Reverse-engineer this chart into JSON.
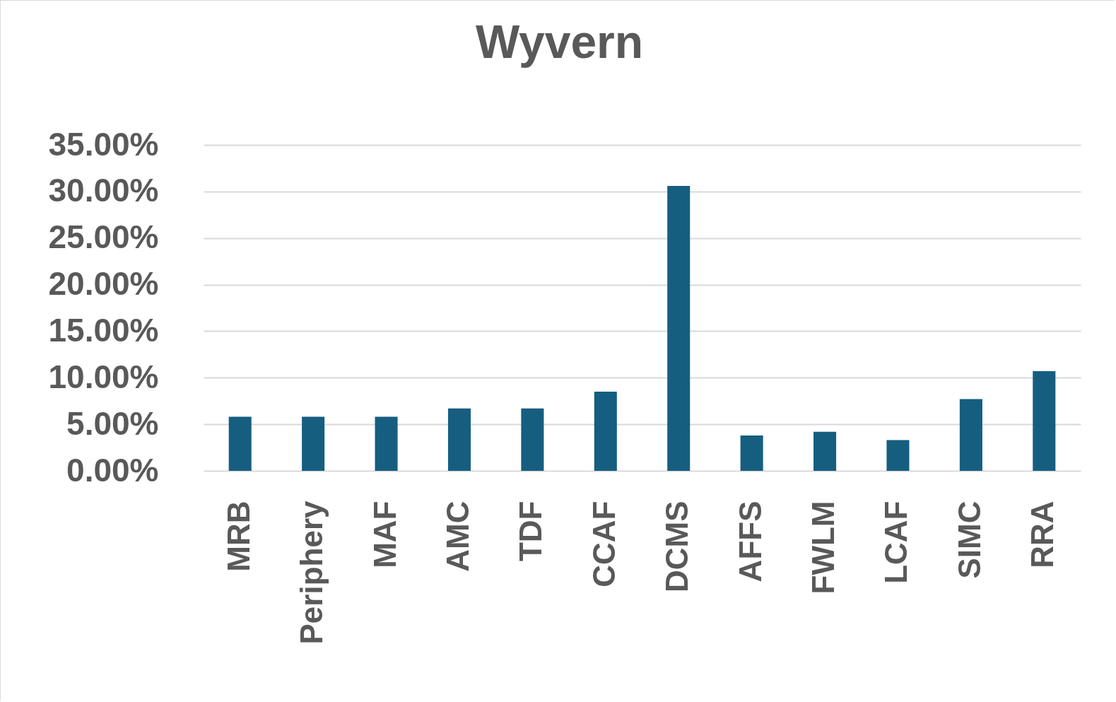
{
  "chart_data": {
    "type": "bar",
    "title": "Wyvern",
    "categories": [
      "MRB",
      "Periphery",
      "MAF",
      "AMC",
      "TDF",
      "CCAF",
      "DCMS",
      "AFFS",
      "FWLM",
      "LCAF",
      "SIMC",
      "RRA"
    ],
    "values": [
      5.8,
      5.8,
      5.8,
      6.7,
      6.7,
      8.5,
      30.6,
      3.8,
      4.2,
      3.3,
      7.7,
      10.7
    ],
    "color": "#165e80",
    "ylim": [
      0,
      35
    ],
    "yticks": [
      {
        "value": 0,
        "label": "0.00%"
      },
      {
        "value": 5,
        "label": "5.00%"
      },
      {
        "value": 10,
        "label": "10.00%"
      },
      {
        "value": 15,
        "label": "15.00%"
      },
      {
        "value": 20,
        "label": "20.00%"
      },
      {
        "value": 25,
        "label": "25.00%"
      },
      {
        "value": 30,
        "label": "30.00%"
      },
      {
        "value": 35,
        "label": "35.00%"
      }
    ],
    "grid": "y"
  }
}
